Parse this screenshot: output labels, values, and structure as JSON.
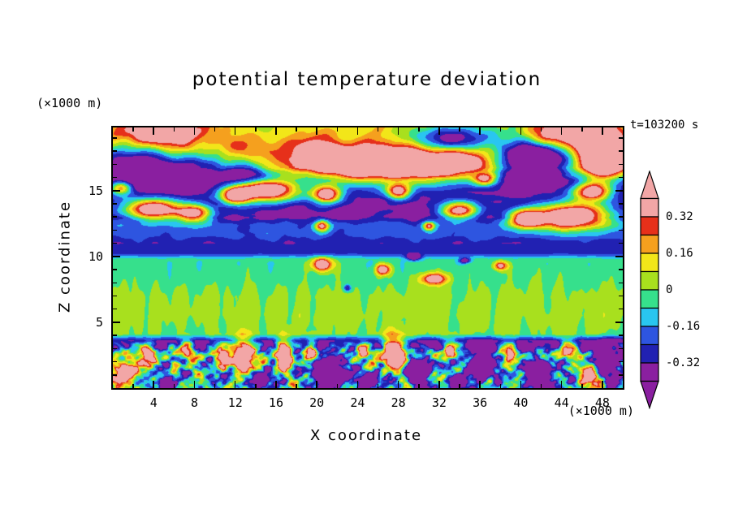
{
  "page": {
    "background": "#ffffff",
    "text_color": "#000000",
    "frame_color": "#000000"
  },
  "chart_data": {
    "type": "heatmap",
    "title": "potential temperature deviation",
    "time_label": "t=103200 s",
    "xlabel": "X coordinate",
    "ylabel": "Z coordinate",
    "x_unit_label": "(×1000 m)",
    "z_unit_label": "(×1000 m)",
    "x_range": [
      0,
      50
    ],
    "z_range": [
      0,
      19.8
    ],
    "x_ticks": [
      4,
      8,
      12,
      16,
      20,
      24,
      28,
      32,
      36,
      40,
      44,
      48
    ],
    "x_tick_labels": [
      "4",
      "8",
      "12",
      "16",
      "20",
      "24",
      "28",
      "32",
      "36",
      "40",
      "44",
      "48"
    ],
    "x_minor_step": 2,
    "z_ticks": [
      5,
      10,
      15
    ],
    "z_tick_labels": [
      "5",
      "10",
      "15"
    ],
    "z_minor_step": 1,
    "levels": [
      -0.4,
      -0.32,
      -0.24,
      -0.16,
      -0.08,
      0,
      0.08,
      0.16,
      0.24,
      0.32,
      0.4
    ],
    "palette": [
      "#8A1FA0",
      "#2121B2",
      "#2E55E0",
      "#29C6F0",
      "#36E08C",
      "#A8E01E",
      "#F2E619",
      "#F5A01E",
      "#E6301A",
      "#F2A6A6"
    ],
    "colorbar_ticks": [
      {
        "value": 0.32,
        "label": "0.32"
      },
      {
        "value": 0.16,
        "label": "0.16"
      },
      {
        "value": 0,
        "label": "0"
      },
      {
        "value": -0.16,
        "label": "-0.16"
      },
      {
        "value": -0.32,
        "label": "-0.32"
      }
    ],
    "field": {
      "profile": [
        [
          0,
          -0.1
        ],
        [
          2.6,
          -0.1
        ],
        [
          3.1,
          -0.3
        ],
        [
          3.6,
          -0.33
        ],
        [
          4.1,
          0.01
        ],
        [
          5.5,
          0.03
        ],
        [
          7.0,
          0.02
        ],
        [
          8.3,
          -0.03
        ],
        [
          9.8,
          -0.06
        ],
        [
          10.25,
          -0.27
        ],
        [
          11.0,
          -0.3
        ],
        [
          11.55,
          -0.22
        ],
        [
          12.4,
          -0.21
        ],
        [
          12.95,
          -0.35
        ],
        [
          15.8,
          -0.36
        ],
        [
          16.3,
          -0.24
        ],
        [
          16.75,
          -0.06
        ],
        [
          17.6,
          -0.03
        ],
        [
          18.4,
          0.04
        ],
        [
          19.3,
          0.09
        ],
        [
          19.8,
          0.11
        ]
      ],
      "noise_bands": [
        {
          "zmin": 0,
          "zmax": 3.1,
          "feather": 0.7,
          "amp": 0.36,
          "kx": 1.7,
          "kz": 2.4,
          "seed": 1.3
        },
        {
          "zmin": 0,
          "zmax": 3.0,
          "feather": 0.5,
          "amp": 0.18,
          "kx": 3.1,
          "kz": 3.4,
          "seed": 4.1
        },
        {
          "zmin": 3.9,
          "zmax": 9.4,
          "feather": 0.5,
          "amp": 0.05,
          "kx": 2.1,
          "kz": 0.22,
          "seed": 2.2
        },
        {
          "zmin": 11.1,
          "zmax": 12.7,
          "feather": 0.3,
          "amp": 0.05,
          "kx": 1.1,
          "kz": 1.6,
          "seed": 3.3
        },
        {
          "zmin": 12.9,
          "zmax": 16.3,
          "feather": 0.3,
          "amp": 0.045,
          "kx": 0.55,
          "kz": 2.7,
          "seed": 5.2
        },
        {
          "zmin": 16.2,
          "zmax": 19.8,
          "feather": 0.4,
          "amp": 0.1,
          "kx": 0.85,
          "kz": 1.1,
          "seed": 6.4
        },
        {
          "zmin": 0,
          "zmax": 19.8,
          "feather": 0.1,
          "amp": 0.018,
          "kx": 0.9,
          "kz": 0.8,
          "seed": 7.5
        }
      ],
      "blobs": [
        [
          27,
          16.9,
          5.5,
          1.0,
          0.95
        ],
        [
          20,
          17.6,
          2.5,
          0.9,
          0.3
        ],
        [
          34,
          17.2,
          2.5,
          0.8,
          0.28
        ],
        [
          33.5,
          18.9,
          2.8,
          0.7,
          -0.5
        ],
        [
          41,
          17.4,
          2.2,
          0.9,
          -0.8
        ],
        [
          4.5,
          19.4,
          3.0,
          0.7,
          0.5
        ],
        [
          12,
          18.3,
          4.0,
          0.7,
          0.14
        ],
        [
          47.5,
          18.8,
          1.8,
          0.9,
          0.85
        ],
        [
          44,
          19.3,
          2.0,
          0.6,
          0.4
        ],
        [
          48,
          16.8,
          1.5,
          0.8,
          0.85
        ],
        [
          2,
          16.9,
          2.2,
          0.9,
          -0.45
        ],
        [
          7.5,
          16.6,
          2.0,
          0.7,
          -0.35
        ],
        [
          13,
          16.4,
          1.5,
          0.5,
          -0.3
        ],
        [
          4,
          13.6,
          2.0,
          0.55,
          0.9
        ],
        [
          8,
          13.3,
          1.2,
          0.45,
          0.75
        ],
        [
          0.8,
          15.2,
          0.8,
          0.4,
          0.6
        ],
        [
          15,
          15.0,
          2.2,
          0.6,
          0.95
        ],
        [
          12,
          14.6,
          1.0,
          0.45,
          0.7
        ],
        [
          21,
          14.7,
          1.0,
          0.45,
          0.8
        ],
        [
          28,
          14.9,
          0.8,
          0.4,
          0.7
        ],
        [
          34,
          13.5,
          1.3,
          0.45,
          0.8
        ],
        [
          36.5,
          15.9,
          0.8,
          0.35,
          0.6
        ],
        [
          40.5,
          12.9,
          1.2,
          0.5,
          0.75
        ],
        [
          45,
          13.1,
          2.6,
          0.7,
          0.95
        ],
        [
          47,
          14.9,
          1.3,
          0.5,
          0.8
        ],
        [
          20.5,
          12.3,
          0.5,
          0.3,
          0.6
        ],
        [
          31,
          12.3,
          0.4,
          0.25,
          0.55
        ],
        [
          20.5,
          9.4,
          0.7,
          0.35,
          0.6
        ],
        [
          26.5,
          9.0,
          0.5,
          0.3,
          0.55
        ],
        [
          31.5,
          8.3,
          0.9,
          0.3,
          0.5
        ],
        [
          38,
          9.3,
          0.5,
          0.25,
          0.45
        ],
        [
          29.5,
          9.95,
          0.5,
          0.18,
          -0.45
        ],
        [
          34.5,
          9.7,
          0.4,
          0.15,
          -0.4
        ],
        [
          23,
          7.6,
          0.25,
          0.2,
          -0.35
        ],
        [
          1.2,
          1.0,
          0.9,
          0.7,
          0.85
        ],
        [
          3.5,
          2.6,
          0.6,
          0.5,
          0.6
        ],
        [
          7.2,
          2.9,
          0.5,
          0.45,
          0.65
        ],
        [
          10.8,
          2.4,
          0.6,
          0.6,
          0.7
        ],
        [
          12.8,
          2.4,
          0.7,
          0.9,
          0.95
        ],
        [
          16.8,
          2.5,
          0.6,
          0.8,
          0.9
        ],
        [
          19.5,
          2.9,
          0.4,
          0.5,
          0.6
        ],
        [
          24.5,
          2.9,
          0.4,
          0.4,
          0.55
        ],
        [
          27.6,
          2.7,
          0.9,
          0.8,
          1.0
        ],
        [
          33,
          2.9,
          0.5,
          0.5,
          0.7
        ],
        [
          39,
          2.8,
          0.45,
          0.45,
          0.6
        ],
        [
          44.5,
          2.9,
          0.5,
          0.5,
          0.65
        ],
        [
          47,
          0.9,
          0.7,
          0.6,
          0.75
        ],
        [
          5,
          0.4,
          0.8,
          0.4,
          -0.5
        ],
        [
          14.8,
          0.7,
          0.7,
          0.5,
          -0.6
        ],
        [
          21,
          1.1,
          1.1,
          0.8,
          -0.8
        ],
        [
          25.3,
          0.6,
          0.8,
          0.5,
          -0.6
        ],
        [
          30,
          1.3,
          0.9,
          0.8,
          -0.75
        ],
        [
          33.8,
          0.3,
          0.6,
          0.4,
          -0.5
        ],
        [
          36,
          1.8,
          0.9,
          0.9,
          -0.8
        ],
        [
          41.8,
          1.0,
          1.0,
          0.8,
          -0.85
        ],
        [
          48.6,
          2.0,
          0.9,
          0.9,
          -0.85
        ]
      ]
    }
  }
}
